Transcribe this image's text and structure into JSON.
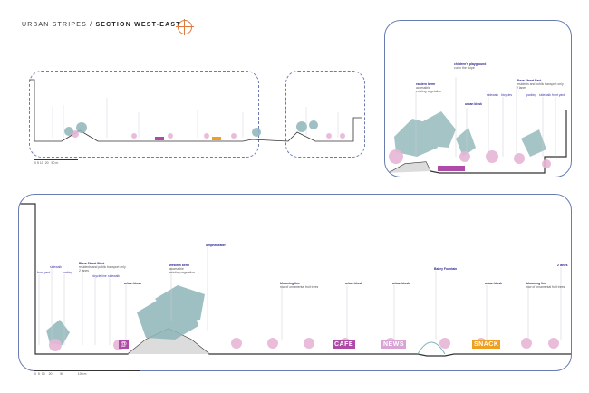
{
  "title": {
    "prefix": "URBAN STRIPES / ",
    "main": "SECTION WEST-EAST"
  },
  "colors": {
    "label": "#3e3aa8",
    "frame": "#6a7bb0",
    "blossom": "#e7b6d6",
    "tree": "#8fb6b8",
    "cafe": "#b04aa8",
    "snack": "#f0a020",
    "compass": "#e07a3c"
  },
  "top_panel_scale": [
    "0",
    "5  10",
    "20",
    "50 m"
  ],
  "detail_labels": [
    {
      "title": "eastern berm",
      "lines": [
        "accessible",
        "existing vegetation"
      ]
    },
    {
      "title": "children's playground",
      "lines": [
        "cut in the slope"
      ]
    },
    {
      "title": "sidewalk",
      "lines": []
    },
    {
      "title": "bicycles",
      "lines": []
    },
    {
      "title": "Plaza Street East",
      "lines": [
        "residents and public transport only",
        "2 lanes"
      ]
    },
    {
      "title": "parking",
      "lines": []
    },
    {
      "title": "sidewalk",
      "lines": []
    },
    {
      "title": "front yard",
      "lines": []
    },
    {
      "title": "urban kiosk",
      "lines": []
    }
  ],
  "section_labels": [
    {
      "title": "front yard",
      "lines": []
    },
    {
      "title": "sidewalk",
      "lines": []
    },
    {
      "title": "parking",
      "lines": []
    },
    {
      "title": "Plaza Street West",
      "lines": [
        "residents and public transport only",
        "2 lanes"
      ]
    },
    {
      "title": "bicycle line",
      "lines": []
    },
    {
      "title": "sidewalk",
      "lines": []
    },
    {
      "title": "urban kiosk",
      "lines": []
    },
    {
      "title": "western berm",
      "lines": [
        "accessible",
        "existing vegetation"
      ]
    },
    {
      "title": "Amphitheater",
      "lines": []
    },
    {
      "title": "blooming line",
      "lines": [
        "row of ornamental fruit trees"
      ]
    },
    {
      "title": "urban kiosk",
      "lines": []
    },
    {
      "title": "urban kiosk",
      "lines": []
    },
    {
      "title": "Bailey Fountain",
      "lines": []
    },
    {
      "title": "urban kiosk",
      "lines": []
    },
    {
      "title": "blooming line",
      "lines": [
        "row of ornamental fruit trees"
      ]
    },
    {
      "title": "2 lanes",
      "lines": []
    }
  ],
  "kiosks": {
    "cafe": "CAFE",
    "news": "NEWS",
    "snack": "SNACK",
    "at": "@"
  },
  "bottom_scale": [
    "0",
    "5",
    "10",
    "20",
    "50",
    "100 m"
  ]
}
